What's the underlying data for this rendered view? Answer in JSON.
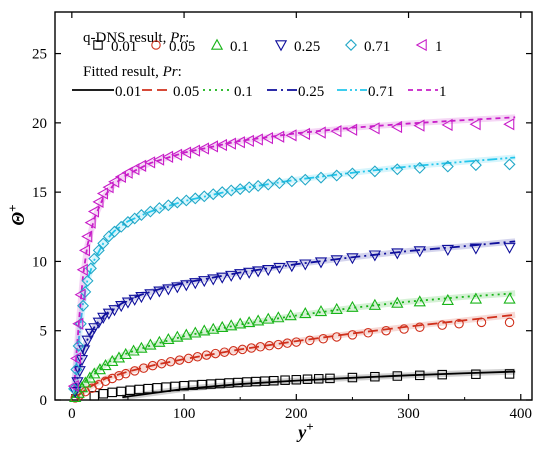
{
  "chart_data": {
    "type": "line",
    "xlabel": "y+",
    "ylabel": "Θ+",
    "xlim": [
      -15,
      410
    ],
    "ylim": [
      0,
      28
    ],
    "xticks": [
      0,
      100,
      200,
      300,
      400
    ],
    "yticks": [
      0,
      5,
      10,
      15,
      20,
      25
    ],
    "legend_headers": {
      "markers": "q-DNS result, Pr:",
      "lines": "Fitted result, Pr:"
    },
    "legend_placement": "top",
    "series": [
      {
        "name": "0.01",
        "marker": "square",
        "line_style": "solid",
        "color": "#000000",
        "fit_color": "#000000",
        "fit_a": 0.0055,
        "fit_b": 0.0,
        "fit_c": 0.3,
        "fit_d": 0.33,
        "x0": 45,
        "cap": null
      },
      {
        "name": "0.05",
        "marker": "circle",
        "line_style": "dash",
        "color": "#d0301c",
        "fit_color": "#d0301c",
        "fit_a": 0.95,
        "fit_b": 0.0,
        "fit_c": 1.9,
        "fit_d": 0.22,
        "x0": 5,
        "cap": null
      },
      {
        "name": "0.1",
        "marker": "triangle-up",
        "line_style": "dot",
        "color": "#18b418",
        "fit_color": "#18b418",
        "fit_a": 1.2,
        "fit_b": 0.0,
        "fit_c": 2.3,
        "fit_d": 0.2,
        "x0": 4,
        "cap": null
      },
      {
        "name": "0.25",
        "marker": "triangle-down",
        "line_style": "dashdot",
        "color": "#0f0f9c",
        "fit_color": "#0f0f9c",
        "fit_a": 2.4,
        "fit_b": 0.0,
        "fit_c": 2.6,
        "fit_d": 0.32,
        "x0": 3,
        "cap": null
      },
      {
        "name": "0.71",
        "marker": "diamond",
        "line_style": "dashdotdot",
        "color": "#22a8c8",
        "fit_color": "#22c6ec",
        "fit_a": 2.9,
        "fit_b": 0.0,
        "fit_c": 4.7,
        "fit_d": 0.34,
        "x0": 2,
        "cap": null
      },
      {
        "name": "1",
        "marker": "triangle-left",
        "line_style": "short-dash",
        "color": "#c81ec8",
        "fit_color": "#c81ec8",
        "fit_a": 3.1,
        "fit_b": 0.0,
        "fit_c": 5.3,
        "fit_d": 0.36,
        "x0": 2,
        "cap": null
      }
    ],
    "points": {
      "0.01": [
        [
          20,
          0.3
        ],
        [
          28,
          0.45
        ],
        [
          36,
          0.55
        ],
        [
          44,
          0.62
        ],
        [
          52,
          0.7
        ],
        [
          60,
          0.76
        ],
        [
          68,
          0.82
        ],
        [
          76,
          0.88
        ],
        [
          84,
          0.93
        ],
        [
          92,
          0.98
        ],
        [
          100,
          1.03
        ],
        [
          108,
          1.07
        ],
        [
          116,
          1.11
        ],
        [
          124,
          1.15
        ],
        [
          132,
          1.19
        ],
        [
          140,
          1.23
        ],
        [
          148,
          1.26
        ],
        [
          156,
          1.3
        ],
        [
          164,
          1.33
        ],
        [
          172,
          1.36
        ],
        [
          180,
          1.39
        ],
        [
          190,
          1.43
        ],
        [
          200,
          1.46
        ],
        [
          210,
          1.5
        ],
        [
          220,
          1.53
        ],
        [
          230,
          1.56
        ],
        [
          250,
          1.62
        ],
        [
          270,
          1.68
        ],
        [
          290,
          1.73
        ],
        [
          310,
          1.78
        ],
        [
          330,
          1.83
        ],
        [
          360,
          1.86
        ],
        [
          390,
          1.88
        ]
      ],
      "0.05": [
        [
          3,
          0.15
        ],
        [
          7,
          0.35
        ],
        [
          12,
          0.6
        ],
        [
          18,
          0.85
        ],
        [
          24,
          1.1
        ],
        [
          30,
          1.35
        ],
        [
          36,
          1.55
        ],
        [
          42,
          1.75
        ],
        [
          48,
          1.9
        ],
        [
          56,
          2.1
        ],
        [
          64,
          2.3
        ],
        [
          72,
          2.48
        ],
        [
          80,
          2.62
        ],
        [
          88,
          2.76
        ],
        [
          96,
          2.88
        ],
        [
          104,
          3.0
        ],
        [
          112,
          3.12
        ],
        [
          120,
          3.24
        ],
        [
          128,
          3.35
        ],
        [
          136,
          3.45
        ],
        [
          144,
          3.55
        ],
        [
          152,
          3.65
        ],
        [
          160,
          3.75
        ],
        [
          168,
          3.84
        ],
        [
          176,
          3.92
        ],
        [
          184,
          4.0
        ],
        [
          192,
          4.1
        ],
        [
          200,
          4.18
        ],
        [
          212,
          4.3
        ],
        [
          224,
          4.42
        ],
        [
          236,
          4.55
        ],
        [
          250,
          4.7
        ],
        [
          264,
          4.85
        ],
        [
          280,
          5.0
        ],
        [
          296,
          5.12
        ],
        [
          310,
          5.25
        ],
        [
          330,
          5.4
        ],
        [
          345,
          5.5
        ],
        [
          365,
          5.6
        ],
        [
          390,
          5.6
        ]
      ],
      "0.1": [
        [
          3,
          0.2
        ],
        [
          6,
          0.5
        ],
        [
          9,
          0.9
        ],
        [
          12,
          1.25
        ],
        [
          16,
          1.6
        ],
        [
          20,
          1.9
        ],
        [
          25,
          2.2
        ],
        [
          30,
          2.5
        ],
        [
          36,
          2.8
        ],
        [
          42,
          3.05
        ],
        [
          48,
          3.3
        ],
        [
          55,
          3.55
        ],
        [
          62,
          3.75
        ],
        [
          70,
          3.98
        ],
        [
          78,
          4.18
        ],
        [
          86,
          4.38
        ],
        [
          94,
          4.55
        ],
        [
          102,
          4.7
        ],
        [
          110,
          4.85
        ],
        [
          118,
          5.0
        ],
        [
          126,
          5.12
        ],
        [
          134,
          5.25
        ],
        [
          142,
          5.37
        ],
        [
          150,
          5.5
        ],
        [
          158,
          5.6
        ],
        [
          166,
          5.72
        ],
        [
          175,
          5.85
        ],
        [
          184,
          5.95
        ],
        [
          195,
          6.1
        ],
        [
          208,
          6.25
        ],
        [
          222,
          6.4
        ],
        [
          236,
          6.55
        ],
        [
          250,
          6.7
        ],
        [
          270,
          6.85
        ],
        [
          290,
          7.0
        ],
        [
          310,
          7.1
        ],
        [
          335,
          7.2
        ],
        [
          360,
          7.3
        ],
        [
          390,
          7.3
        ]
      ],
      "0.25": [
        [
          3,
          0.6
        ],
        [
          5,
          1.3
        ],
        [
          7,
          2.1
        ],
        [
          9,
          2.9
        ],
        [
          11,
          3.6
        ],
        [
          14,
          4.3
        ],
        [
          17,
          4.8
        ],
        [
          20,
          5.2
        ],
        [
          24,
          5.6
        ],
        [
          28,
          5.95
        ],
        [
          33,
          6.25
        ],
        [
          38,
          6.5
        ],
        [
          44,
          6.8
        ],
        [
          50,
          7.05
        ],
        [
          56,
          7.25
        ],
        [
          62,
          7.45
        ],
        [
          70,
          7.65
        ],
        [
          78,
          7.85
        ],
        [
          86,
          8.0
        ],
        [
          94,
          8.15
        ],
        [
          102,
          8.3
        ],
        [
          110,
          8.45
        ],
        [
          118,
          8.6
        ],
        [
          126,
          8.72
        ],
        [
          134,
          8.85
        ],
        [
          142,
          8.98
        ],
        [
          150,
          9.1
        ],
        [
          158,
          9.2
        ],
        [
          166,
          9.3
        ],
        [
          175,
          9.4
        ],
        [
          185,
          9.55
        ],
        [
          196,
          9.68
        ],
        [
          208,
          9.8
        ],
        [
          222,
          9.95
        ],
        [
          236,
          10.1
        ],
        [
          250,
          10.25
        ],
        [
          270,
          10.45
        ],
        [
          290,
          10.6
        ],
        [
          310,
          10.75
        ],
        [
          335,
          10.85
        ],
        [
          360,
          10.95
        ],
        [
          390,
          11.0
        ]
      ],
      "0.71": [
        [
          2,
          0.8
        ],
        [
          4,
          2.2
        ],
        [
          6,
          3.9
        ],
        [
          8,
          5.5
        ],
        [
          10,
          6.8
        ],
        [
          12,
          7.8
        ],
        [
          14,
          8.6
        ],
        [
          17,
          9.5
        ],
        [
          20,
          10.2
        ],
        [
          24,
          10.8
        ],
        [
          28,
          11.3
        ],
        [
          33,
          11.8
        ],
        [
          38,
          12.15
        ],
        [
          44,
          12.5
        ],
        [
          50,
          12.85
        ],
        [
          56,
          13.1
        ],
        [
          62,
          13.35
        ],
        [
          70,
          13.6
        ],
        [
          78,
          13.85
        ],
        [
          86,
          14.05
        ],
        [
          94,
          14.25
        ],
        [
          102,
          14.4
        ],
        [
          110,
          14.55
        ],
        [
          118,
          14.7
        ],
        [
          126,
          14.85
        ],
        [
          134,
          15.0
        ],
        [
          142,
          15.12
        ],
        [
          150,
          15.22
        ],
        [
          158,
          15.35
        ],
        [
          166,
          15.45
        ],
        [
          175,
          15.55
        ],
        [
          185,
          15.65
        ],
        [
          196,
          15.78
        ],
        [
          208,
          15.9
        ],
        [
          222,
          16.05
        ],
        [
          236,
          16.2
        ],
        [
          250,
          16.35
        ],
        [
          270,
          16.5
        ],
        [
          290,
          16.65
        ],
        [
          310,
          16.75
        ],
        [
          335,
          16.85
        ],
        [
          360,
          16.95
        ],
        [
          390,
          17.0
        ]
      ],
      "1": [
        [
          2,
          1.0
        ],
        [
          4,
          3.0
        ],
        [
          6,
          5.5
        ],
        [
          8,
          7.6
        ],
        [
          10,
          9.4
        ],
        [
          12,
          10.8
        ],
        [
          14,
          11.8
        ],
        [
          17,
          12.8
        ],
        [
          20,
          13.6
        ],
        [
          24,
          14.3
        ],
        [
          28,
          14.9
        ],
        [
          33,
          15.35
        ],
        [
          38,
          15.75
        ],
        [
          44,
          16.1
        ],
        [
          50,
          16.4
        ],
        [
          56,
          16.65
        ],
        [
          62,
          16.9
        ],
        [
          70,
          17.15
        ],
        [
          78,
          17.35
        ],
        [
          86,
          17.55
        ],
        [
          94,
          17.7
        ],
        [
          102,
          17.85
        ],
        [
          110,
          18.0
        ],
        [
          118,
          18.15
        ],
        [
          126,
          18.3
        ],
        [
          134,
          18.4
        ],
        [
          142,
          18.5
        ],
        [
          150,
          18.6
        ],
        [
          158,
          18.7
        ],
        [
          166,
          18.8
        ],
        [
          175,
          18.9
        ],
        [
          185,
          19.0
        ],
        [
          196,
          19.1
        ],
        [
          208,
          19.2
        ],
        [
          222,
          19.3
        ],
        [
          236,
          19.4
        ],
        [
          250,
          19.5
        ],
        [
          270,
          19.6
        ],
        [
          290,
          19.7
        ],
        [
          310,
          19.8
        ],
        [
          335,
          19.85
        ],
        [
          360,
          19.9
        ],
        [
          390,
          19.9
        ]
      ]
    },
    "fit_lines": {
      "0.01": [
        [
          45,
          0.2
        ],
        [
          100,
          0.8
        ],
        [
          150,
          1.15
        ],
        [
          200,
          1.4
        ],
        [
          250,
          1.6
        ],
        [
          300,
          1.78
        ],
        [
          350,
          1.93
        ],
        [
          395,
          2.05
        ]
      ],
      "0.05": [
        [
          5,
          0.3
        ],
        [
          15,
          0.9
        ],
        [
          30,
          1.55
        ],
        [
          50,
          2.05
        ],
        [
          75,
          2.55
        ],
        [
          100,
          2.95
        ],
        [
          150,
          3.65
        ],
        [
          200,
          4.25
        ],
        [
          250,
          4.8
        ],
        [
          300,
          5.3
        ],
        [
          350,
          5.75
        ],
        [
          395,
          6.15
        ]
      ],
      "0.1": [
        [
          4,
          0.3
        ],
        [
          10,
          1.1
        ],
        [
          20,
          2.0
        ],
        [
          35,
          2.85
        ],
        [
          50,
          3.4
        ],
        [
          75,
          4.05
        ],
        [
          100,
          4.6
        ],
        [
          150,
          5.45
        ],
        [
          200,
          6.1
        ],
        [
          250,
          6.65
        ],
        [
          300,
          7.1
        ],
        [
          350,
          7.45
        ],
        [
          395,
          7.7
        ]
      ],
      "0.25": [
        [
          3,
          0.5
        ],
        [
          6,
          2.0
        ],
        [
          10,
          3.5
        ],
        [
          15,
          4.6
        ],
        [
          22,
          5.5
        ],
        [
          30,
          6.2
        ],
        [
          45,
          7.0
        ],
        [
          60,
          7.55
        ],
        [
          80,
          8.05
        ],
        [
          100,
          8.45
        ],
        [
          150,
          9.2
        ],
        [
          200,
          9.8
        ],
        [
          250,
          10.3
        ],
        [
          300,
          10.75
        ],
        [
          350,
          11.1
        ],
        [
          395,
          11.45
        ]
      ],
      "0.71": [
        [
          2,
          0.6
        ],
        [
          4,
          2.5
        ],
        [
          7,
          5.0
        ],
        [
          10,
          7.0
        ],
        [
          14,
          8.7
        ],
        [
          20,
          10.1
        ],
        [
          28,
          11.3
        ],
        [
          38,
          12.2
        ],
        [
          50,
          12.9
        ],
        [
          70,
          13.6
        ],
        [
          100,
          14.35
        ],
        [
          150,
          15.25
        ],
        [
          200,
          15.9
        ],
        [
          250,
          16.4
        ],
        [
          300,
          16.85
        ],
        [
          350,
          17.2
        ],
        [
          395,
          17.5
        ]
      ],
      "1": [
        [
          2,
          0.8
        ],
        [
          4,
          3.2
        ],
        [
          7,
          6.3
        ],
        [
          10,
          9.0
        ],
        [
          14,
          11.2
        ],
        [
          20,
          13.1
        ],
        [
          28,
          14.6
        ],
        [
          38,
          15.6
        ],
        [
          50,
          16.3
        ],
        [
          70,
          17.1
        ],
        [
          100,
          17.85
        ],
        [
          150,
          18.7
        ],
        [
          200,
          19.25
        ],
        [
          250,
          19.65
        ],
        [
          300,
          19.95
        ],
        [
          350,
          20.2
        ],
        [
          395,
          20.4
        ]
      ]
    }
  }
}
